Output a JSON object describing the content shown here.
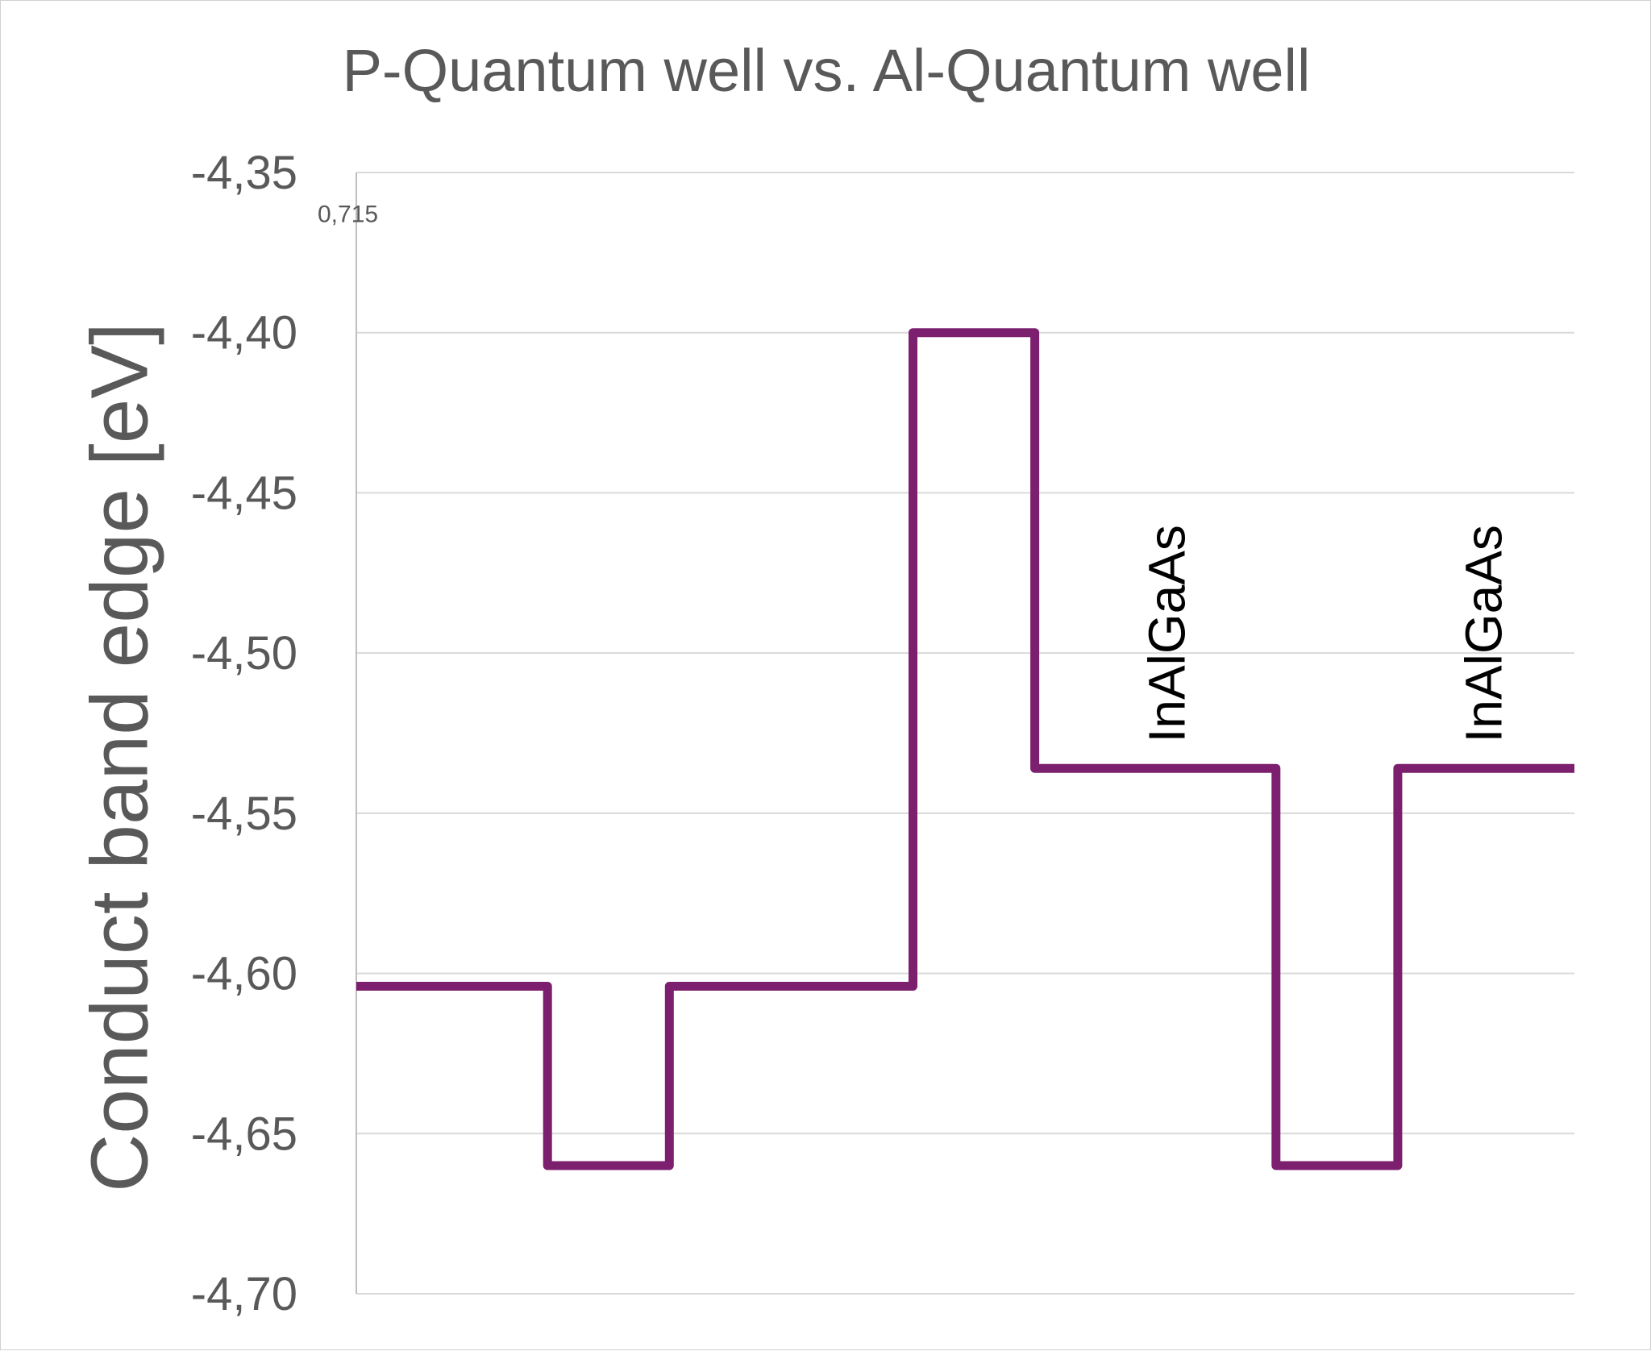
{
  "chart_data": {
    "type": "line",
    "title": "P-Quantum well vs. Al-Quantum well",
    "xlabel": "",
    "ylabel": "Conduct band edge  [eV]",
    "ylim": [
      -4.7,
      -4.35
    ],
    "y_ticks": [
      "-4,35",
      "-4,40",
      "-4,45",
      "-4,50",
      "-4,55",
      "-4,60",
      "-4,65",
      "-4,70"
    ],
    "y_tick_values": [
      -4.35,
      -4.4,
      -4.45,
      -4.5,
      -4.55,
      -4.6,
      -4.65,
      -4.7
    ],
    "grid": true,
    "xlim": [
      0,
      1
    ],
    "series": [
      {
        "name": "Conduct band edge",
        "color": "#7B1F6E",
        "x": [
          0,
          0.157,
          0.157,
          0.257,
          0.257,
          0.457,
          0.457,
          0.557,
          0.557,
          0.755,
          0.755,
          0.855,
          0.855,
          1.0
        ],
        "y": [
          -4.604,
          -4.604,
          -4.66,
          -4.66,
          -4.604,
          -4.604,
          -4.4,
          -4.4,
          -4.536,
          -4.536,
          -4.66,
          -4.66,
          -4.536,
          -4.536
        ]
      }
    ],
    "annotations": [
      {
        "text": "0,715",
        "x": 0.0,
        "y": -4.363
      }
    ],
    "region_labels": [
      {
        "text": "InAlGaAs",
        "x": 0.68,
        "y": -4.528
      },
      {
        "text": "InAlGaAs",
        "x": 0.94,
        "y": -4.528
      }
    ]
  }
}
